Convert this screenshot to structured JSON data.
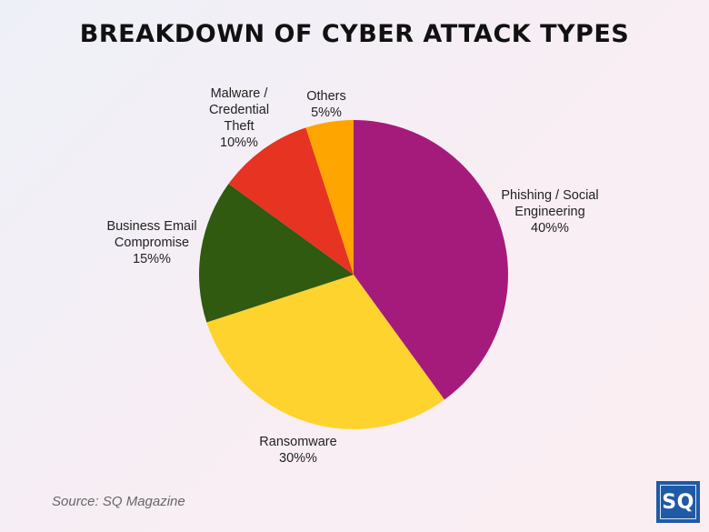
{
  "chart_data": {
    "type": "pie",
    "title": "BREAKDOWN OF CYBER ATTACK TYPES",
    "slices": [
      {
        "name": "Phishing / Social Engineering",
        "value": 40,
        "label_lines": [
          "Phishing / Social",
          "Engineering"
        ],
        "value_label": "40%%",
        "color": "#a51b7b"
      },
      {
        "name": "Ransomware",
        "value": 30,
        "label_lines": [
          "Ransomware"
        ],
        "value_label": "30%%",
        "color": "#ffd32e"
      },
      {
        "name": "Business Email Compromise",
        "value": 15,
        "label_lines": [
          "Business Email",
          "Compromise"
        ],
        "value_label": "15%%",
        "color": "#2f5a10"
      },
      {
        "name": "Malware / Credential Theft",
        "value": 10,
        "label_lines": [
          "Malware /",
          "Credential",
          "Theft"
        ],
        "value_label": "10%%",
        "color": "#e63322"
      },
      {
        "name": "Others",
        "value": 5,
        "label_lines": [
          "Others"
        ],
        "value_label": "5%%",
        "color": "#ffa500"
      }
    ],
    "start": "12 o'clock",
    "direction": "clockwise"
  },
  "source": "Source: SQ Magazine",
  "logo": "SQ"
}
